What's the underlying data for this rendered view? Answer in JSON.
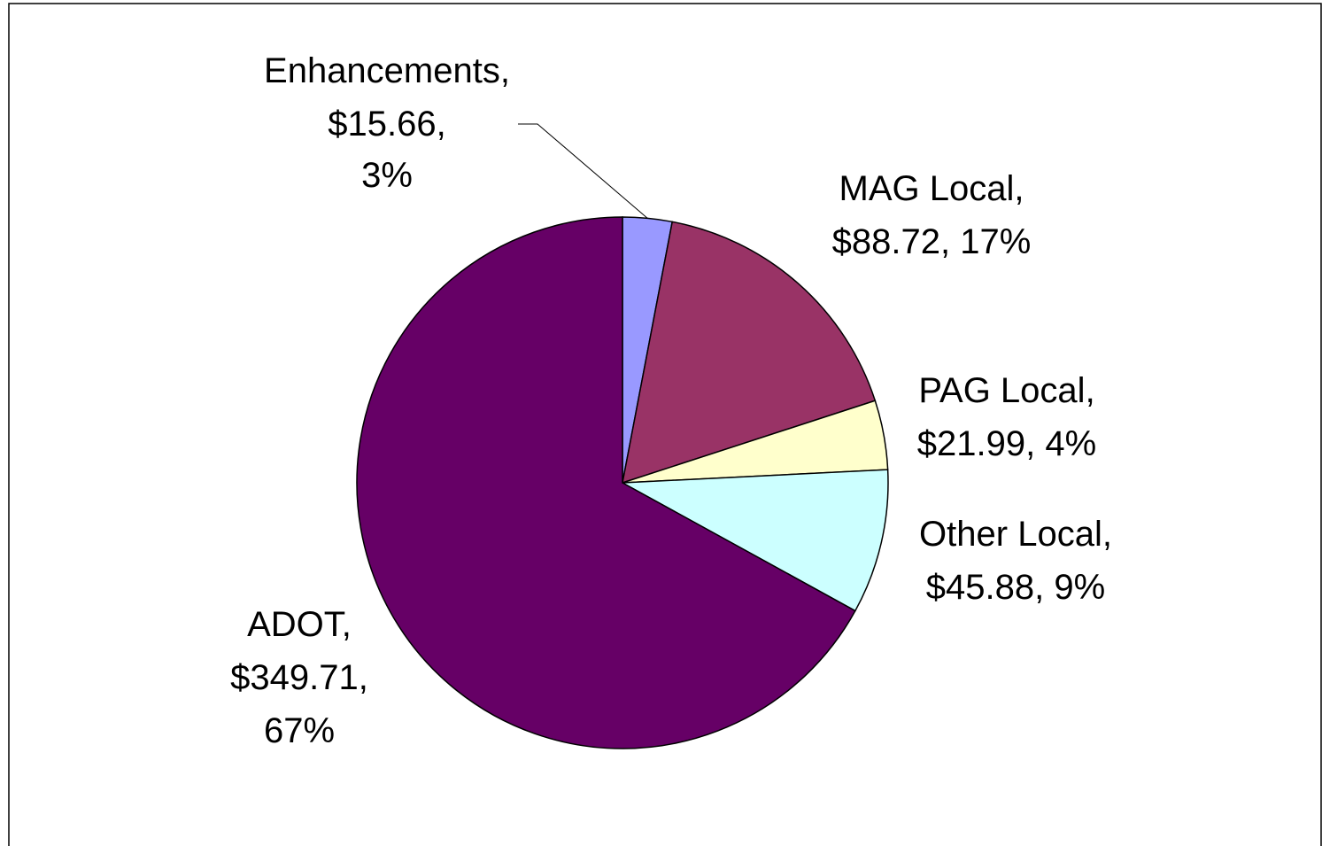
{
  "chart_data": {
    "type": "pie",
    "categories": [
      "Enhancements",
      "MAG Local",
      "PAG Local",
      "Other Local",
      "ADOT"
    ],
    "values": [
      15.66,
      88.72,
      21.99,
      45.88,
      349.71
    ],
    "value_labels": [
      "$15.66",
      "$88.72",
      "$21.99",
      "$45.88",
      "$349.71"
    ],
    "percents": [
      3,
      17,
      4,
      9,
      67
    ],
    "percent_labels": [
      "3%",
      "17%",
      "4%",
      "9%",
      "67%"
    ],
    "separator": ", ",
    "colors": [
      "#9999ff",
      "#993366",
      "#ffffcc",
      "#ccffff",
      "#660066"
    ]
  }
}
